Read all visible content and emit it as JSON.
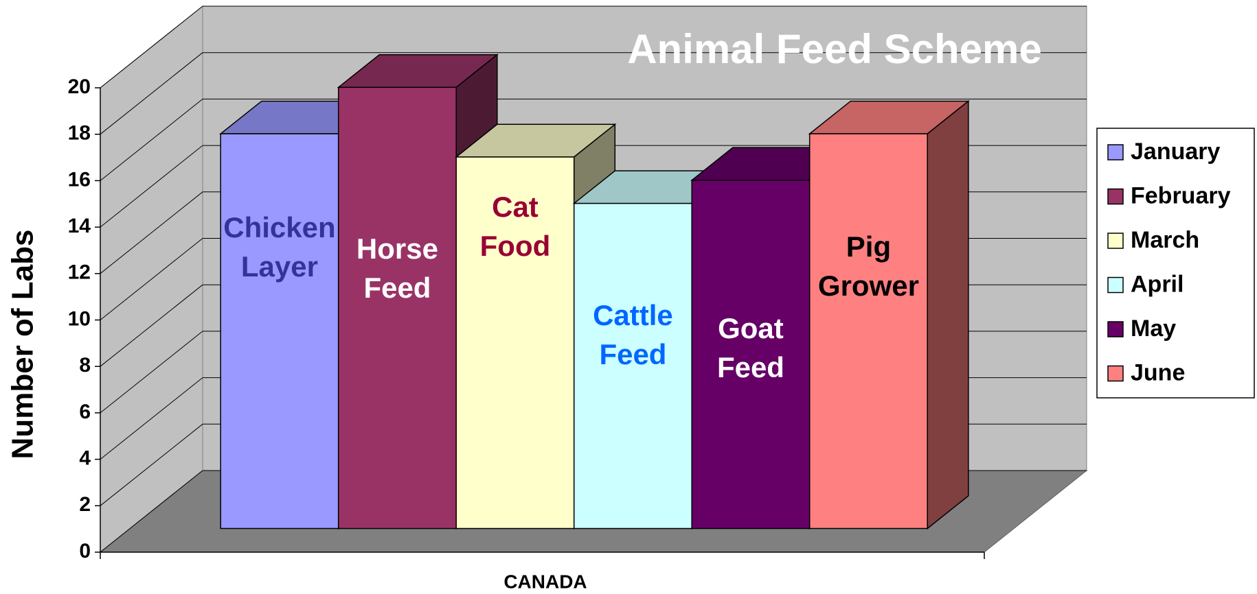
{
  "chart_data": {
    "type": "bar3d",
    "title": "Animal Feed Scheme",
    "y_label": "Number of Labs",
    "categories": [
      "CANADA"
    ],
    "series": [
      {
        "name": "January",
        "color": "#9999ff",
        "values": [
          17
        ],
        "label_lines": [
          "Chicken",
          "Layer"
        ],
        "label_color": "#333399"
      },
      {
        "name": "February",
        "color": "#993366",
        "values": [
          19
        ],
        "label_lines": [
          "Horse",
          "Feed"
        ],
        "label_color": "#ffffff"
      },
      {
        "name": "March",
        "color": "#ffffcc",
        "values": [
          16
        ],
        "label_lines": [
          "Cat",
          "Food"
        ],
        "label_color": "#990033"
      },
      {
        "name": "April",
        "color": "#ccffff",
        "values": [
          14
        ],
        "label_lines": [
          "Cattle",
          "Feed"
        ],
        "label_color": "#0066ff"
      },
      {
        "name": "May",
        "color": "#660066",
        "values": [
          15
        ],
        "label_lines": [
          "Goat",
          "Feed"
        ],
        "label_color": "#ffffff"
      },
      {
        "name": "June",
        "color": "#ff8080",
        "values": [
          17
        ],
        "label_lines": [
          "Pig",
          "Grower"
        ],
        "label_color": "#000000"
      }
    ],
    "ylim": [
      0,
      20
    ],
    "yticks": [
      0,
      2,
      4,
      6,
      8,
      10,
      12,
      14,
      16,
      18,
      20
    ],
    "grid": true,
    "legend": "right"
  }
}
